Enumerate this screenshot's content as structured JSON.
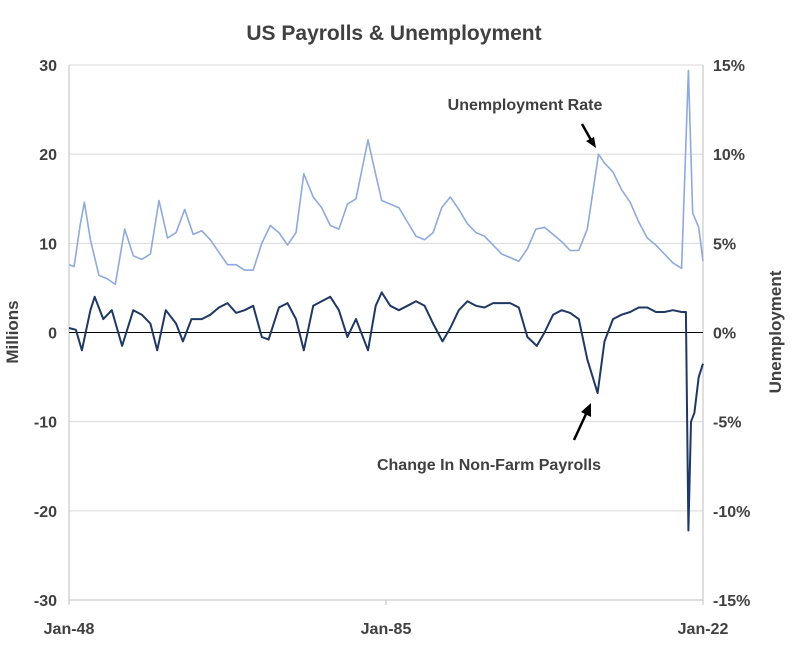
{
  "chart_data": {
    "type": "line",
    "title": "US Payrolls & Unemployment",
    "x_ticks": [
      "Jan-48",
      "Jan-85",
      "Jan-22"
    ],
    "xlim": [
      "Jan-48",
      "Jan-22"
    ],
    "ylabel_left": "Millions",
    "ylabel_right": "Unemployment",
    "ylim_left": [
      -30,
      30
    ],
    "ylim_right": [
      -15,
      15
    ],
    "y_ticks_left": [
      "30",
      "20",
      "10",
      "0",
      "-10",
      "-20",
      "-30"
    ],
    "y_ticks_right": [
      "15%",
      "10%",
      "5%",
      "0%",
      "-5%",
      "-10%",
      "-15%"
    ],
    "grid": true,
    "annotations": [
      {
        "text": "Unemployment Rate",
        "x": "Jan-09",
        "y_right": 9.9
      },
      {
        "text": "Change In Non-Farm Payrolls",
        "x": "Jan-09",
        "y_left": -6.5
      }
    ],
    "series": [
      {
        "name": "Unemployment Rate",
        "axis": "right",
        "color": "#8eaadb",
        "x": [
          1948.0,
          1948.6,
          1949.3,
          1949.8,
          1950.5,
          1951.5,
          1952.5,
          1953.4,
          1954.5,
          1955.5,
          1956.5,
          1957.5,
          1958.5,
          1959.5,
          1960.5,
          1961.5,
          1962.5,
          1963.5,
          1964.5,
          1965.5,
          1966.5,
          1967.5,
          1968.5,
          1969.5,
          1970.5,
          1971.5,
          1972.5,
          1973.5,
          1974.5,
          1975.4,
          1976.5,
          1977.5,
          1978.5,
          1979.5,
          1980.5,
          1981.5,
          1982.9,
          1983.5,
          1984.5,
          1985.5,
          1986.5,
          1987.5,
          1988.5,
          1989.5,
          1990.5,
          1991.5,
          1992.5,
          1993.5,
          1994.5,
          1995.5,
          1996.5,
          1997.5,
          1998.5,
          1999.5,
          2000.5,
          2001.5,
          2002.5,
          2003.5,
          2004.5,
          2005.5,
          2006.5,
          2007.5,
          2008.5,
          2009.8,
          2010.5,
          2011.5,
          2012.5,
          2013.5,
          2014.5,
          2015.5,
          2016.5,
          2017.5,
          2018.5,
          2019.5,
          2020.3,
          2020.8,
          2021.5,
          2022.0
        ],
        "values": [
          3.8,
          3.7,
          6.0,
          7.3,
          5.2,
          3.2,
          3.0,
          2.7,
          5.8,
          4.3,
          4.1,
          4.4,
          7.4,
          5.3,
          5.6,
          6.9,
          5.5,
          5.7,
          5.2,
          4.5,
          3.8,
          3.8,
          3.5,
          3.5,
          5.0,
          6.0,
          5.6,
          4.9,
          5.6,
          8.9,
          7.6,
          7.0,
          6.0,
          5.8,
          7.2,
          7.5,
          10.8,
          9.5,
          7.4,
          7.2,
          7.0,
          6.2,
          5.4,
          5.2,
          5.6,
          7.0,
          7.6,
          6.9,
          6.1,
          5.6,
          5.4,
          4.9,
          4.4,
          4.2,
          4.0,
          4.7,
          5.8,
          5.9,
          5.5,
          5.1,
          4.6,
          4.6,
          5.8,
          10.0,
          9.5,
          9.0,
          8.0,
          7.3,
          6.2,
          5.3,
          4.9,
          4.4,
          3.9,
          3.6,
          14.7,
          6.7,
          5.9,
          4.0
        ]
      },
      {
        "name": "Change In Non-Farm Payrolls",
        "axis": "left",
        "color": "#1f3864",
        "x": [
          1948.0,
          1948.8,
          1949.5,
          1950.5,
          1951.0,
          1952.0,
          1953.0,
          1954.2,
          1955.5,
          1956.5,
          1957.5,
          1958.3,
          1959.3,
          1960.5,
          1961.3,
          1962.3,
          1963.5,
          1964.5,
          1965.5,
          1966.5,
          1967.5,
          1968.5,
          1969.5,
          1970.5,
          1971.3,
          1972.5,
          1973.5,
          1974.5,
          1975.4,
          1976.5,
          1977.5,
          1978.5,
          1979.5,
          1980.5,
          1981.5,
          1982.9,
          1983.8,
          1984.5,
          1985.5,
          1986.5,
          1987.5,
          1988.5,
          1989.5,
          1990.5,
          1991.6,
          1992.5,
          1993.5,
          1994.5,
          1995.5,
          1996.5,
          1997.5,
          1998.5,
          1999.5,
          2000.5,
          2001.5,
          2002.6,
          2003.5,
          2004.5,
          2005.5,
          2006.5,
          2007.5,
          2008.5,
          2009.7,
          2010.5,
          2011.5,
          2012.5,
          2013.5,
          2014.5,
          2015.5,
          2016.5,
          2017.5,
          2018.5,
          2019.5,
          2020.0,
          2020.3,
          2020.6,
          2021.0,
          2021.5,
          2022.0
        ],
        "values": [
          0.5,
          0.3,
          -2.0,
          2.5,
          4.0,
          1.5,
          2.5,
          -1.5,
          2.5,
          2.0,
          1.0,
          -2.0,
          2.5,
          1.0,
          -1.0,
          1.5,
          1.5,
          2.0,
          2.8,
          3.3,
          2.2,
          2.5,
          3.0,
          -0.5,
          -0.8,
          2.8,
          3.3,
          1.5,
          -2.0,
          3.0,
          3.5,
          4.0,
          2.5,
          -0.5,
          1.5,
          -2.0,
          3.0,
          4.5,
          3.0,
          2.5,
          3.0,
          3.5,
          3.0,
          1.0,
          -1.0,
          0.5,
          2.5,
          3.5,
          3.0,
          2.8,
          3.3,
          3.3,
          3.3,
          2.8,
          -0.5,
          -1.5,
          0.0,
          2.0,
          2.5,
          2.2,
          1.5,
          -3.0,
          -6.8,
          -1.0,
          1.5,
          2.0,
          2.3,
          2.8,
          2.8,
          2.3,
          2.3,
          2.5,
          2.3,
          2.3,
          -22.2,
          -10.0,
          -9.0,
          -5.0,
          -3.5
        ]
      }
    ]
  }
}
